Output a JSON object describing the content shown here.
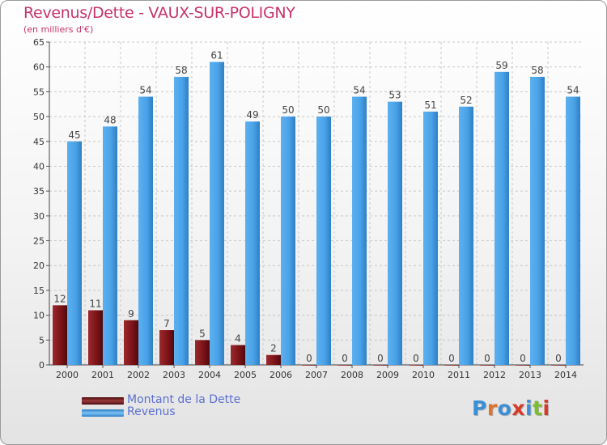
{
  "header": {
    "title": "Revenus/Dette - VAUX-SUR-POLIGNY",
    "subtitle": "(en milliers d'€)"
  },
  "logo": {
    "text": "Proxiti"
  },
  "colors": {
    "title": "#c8336b",
    "debt": "#7a1216",
    "revenue": "#4aa3e8",
    "legend_text": "#5b6fd0"
  },
  "chart_data": {
    "type": "bar",
    "title": "Revenus/Dette - VAUX-SUR-POLIGNY",
    "subtitle": "(en milliers d'€)",
    "categories": [
      "2000",
      "2001",
      "2002",
      "2003",
      "2004",
      "2005",
      "2006",
      "2007",
      "2008",
      "2009",
      "2010",
      "2011",
      "2012",
      "2013",
      "2014"
    ],
    "series": [
      {
        "name": "Montant de la Dette",
        "values": [
          12,
          11,
          9,
          7,
          5,
          4,
          2,
          0,
          0,
          0,
          0,
          0,
          0,
          0,
          0
        ]
      },
      {
        "name": "Revenus",
        "values": [
          45,
          48,
          54,
          58,
          61,
          49,
          50,
          50,
          54,
          53,
          51,
          52,
          59,
          58,
          54
        ]
      }
    ],
    "ylim": [
      0,
      65
    ],
    "yticks": [
      0,
      5,
      10,
      15,
      20,
      25,
      30,
      35,
      40,
      45,
      50,
      55,
      60,
      65
    ],
    "grid": true,
    "legend_position": "bottom-left"
  }
}
